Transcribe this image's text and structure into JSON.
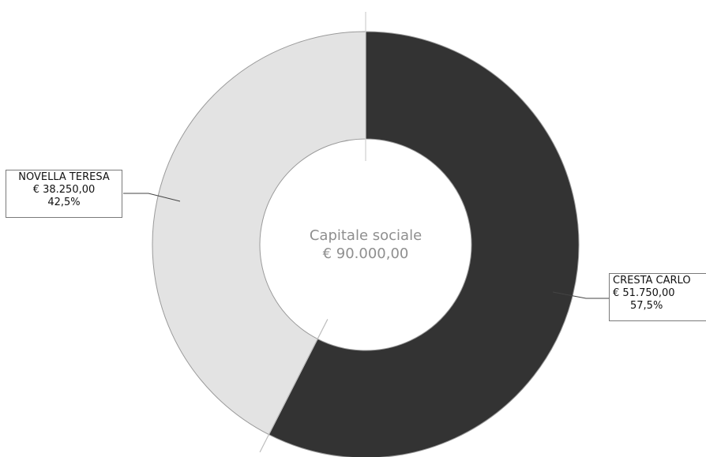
{
  "chart_data": {
    "type": "pie",
    "variant": "donut",
    "center_label": {
      "title": "Capitale sociale",
      "value": "€ 90.000,00"
    },
    "total": 90000,
    "slices": [
      {
        "name": "CRESTA CARLO",
        "value": 51750,
        "value_label": "€ 51.750,00",
        "percent": 57.5,
        "percent_label": "57,5%",
        "color": "#333333"
      },
      {
        "name": "NOVELLA TERESA",
        "value": 38250,
        "value_label": "€ 38.250,00",
        "percent": 42.5,
        "percent_label": "42,5%",
        "color": "#e3e3e3"
      }
    ],
    "start": "top",
    "direction": "clockwise"
  }
}
